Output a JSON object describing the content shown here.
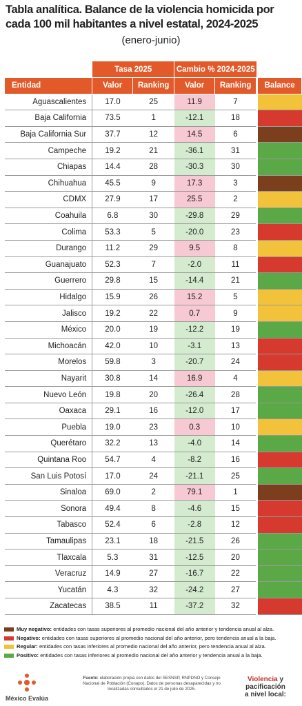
{
  "header": {
    "title": "Tabla analítica. Balance de la violencia homicida por cada 100 mil habitantes a nivel estatal, 2024-2025",
    "subtitle": "(enero-junio)"
  },
  "table": {
    "groups": [
      "Tasa 2025",
      "Cambio % 2024-2025"
    ],
    "columns": [
      "Entidad",
      "Valor",
      "Ranking",
      "Valor",
      "Ranking",
      "Balance"
    ],
    "rows": [
      [
        "Aguascalientes",
        "17.0",
        "25",
        "11.9",
        "7",
        "regular"
      ],
      [
        "Baja California",
        "73.5",
        "1",
        "-12.1",
        "18",
        "negativo"
      ],
      [
        "Baja California Sur",
        "37.7",
        "12",
        "14.5",
        "6",
        "muy_negativo"
      ],
      [
        "Campeche",
        "19.2",
        "21",
        "-36.1",
        "31",
        "positivo"
      ],
      [
        "Chiapas",
        "14.4",
        "28",
        "-30.3",
        "30",
        "positivo"
      ],
      [
        "Chihuahua",
        "45.5",
        "9",
        "17.3",
        "3",
        "muy_negativo"
      ],
      [
        "CDMX",
        "27.9",
        "17",
        "25.5",
        "2",
        "regular"
      ],
      [
        "Coahuila",
        "6.8",
        "30",
        "-29.8",
        "29",
        "positivo"
      ],
      [
        "Colima",
        "53.3",
        "5",
        "-20.0",
        "23",
        "negativo"
      ],
      [
        "Durango",
        "11.2",
        "29",
        "9.5",
        "8",
        "regular"
      ],
      [
        "Guanajuato",
        "52.3",
        "7",
        "-2.0",
        "11",
        "negativo"
      ],
      [
        "Guerrero",
        "29.8",
        "15",
        "-14.4",
        "21",
        "positivo"
      ],
      [
        "Hidalgo",
        "15.9",
        "26",
        "15.2",
        "5",
        "regular"
      ],
      [
        "Jalisco",
        "19.2",
        "22",
        "0.7",
        "9",
        "regular"
      ],
      [
        "México",
        "20.0",
        "19",
        "-12.2",
        "19",
        "positivo"
      ],
      [
        "Michoacán",
        "42.0",
        "10",
        "-3.1",
        "13",
        "negativo"
      ],
      [
        "Morelos",
        "59.8",
        "3",
        "-20.7",
        "24",
        "negativo"
      ],
      [
        "Nayarit",
        "30.8",
        "14",
        "16.9",
        "4",
        "regular"
      ],
      [
        "Nuevo León",
        "19.8",
        "20",
        "-26.4",
        "28",
        "positivo"
      ],
      [
        "Oaxaca",
        "29.1",
        "16",
        "-12.0",
        "17",
        "positivo"
      ],
      [
        "Puebla",
        "19.0",
        "23",
        "0.3",
        "10",
        "regular"
      ],
      [
        "Querétaro",
        "32.2",
        "13",
        "-4.0",
        "14",
        "positivo"
      ],
      [
        "Quintana Roo",
        "54.7",
        "4",
        "-8.2",
        "16",
        "negativo"
      ],
      [
        "San Luis Potosí",
        "17.0",
        "24",
        "-21.1",
        "25",
        "positivo"
      ],
      [
        "Sinaloa",
        "69.0",
        "2",
        "79.1",
        "1",
        "muy_negativo"
      ],
      [
        "Sonora",
        "49.4",
        "8",
        "-4.6",
        "15",
        "negativo"
      ],
      [
        "Tabasco",
        "52.4",
        "6",
        "-2.8",
        "12",
        "negativo"
      ],
      [
        "Tamaulipas",
        "23.1",
        "18",
        "-21.5",
        "26",
        "positivo"
      ],
      [
        "Tlaxcala",
        "5.3",
        "31",
        "-12.5",
        "20",
        "positivo"
      ],
      [
        "Veracruz",
        "14.9",
        "27",
        "-16.7",
        "22",
        "positivo"
      ],
      [
        "Yucatán",
        "4.3",
        "32",
        "-24.2",
        "27",
        "positivo"
      ],
      [
        "Zacatecas",
        "38.5",
        "11",
        "-37.2",
        "32",
        "negativo"
      ]
    ]
  },
  "legend": [
    {
      "key": "muy_negativo",
      "color": "#7b3f1d",
      "label": "Muy negativo:",
      "text": "entidades con tasas superiores al promedio nacional del año anterior y tendencia anual al alza."
    },
    {
      "key": "negativo",
      "color": "#d63a2f",
      "label": "Negativo:",
      "text": "entidades con tasas superiores al promedio nacional del año anterior, pero tendencia anual a la baja."
    },
    {
      "key": "regular",
      "color": "#f2c23b",
      "label": "Regular:",
      "text": "entidades con tasas inferiores al promedio nacional del año anterior, pero tendencia anual al alza."
    },
    {
      "key": "positivo",
      "color": "#5aa846",
      "label": "Positivo:",
      "text": "entidades con tasas inferiores al promedio nacional del año anterior y tendencia anual a la baja."
    }
  ],
  "footer": {
    "source_label": "Fuente:",
    "source_text": "elaboración propia con datos del SESNSP, RNPDNO y Consejo Nacional de Población (Conapo). Datos de personas desaparecidas y no localizadas consultados el 21 de julio de 2025.",
    "logo_left": "México Evalúa",
    "logo_right_1": "Violencia",
    "logo_right_2": "y pacificación",
    "logo_right_3": "a nivel local:"
  }
}
